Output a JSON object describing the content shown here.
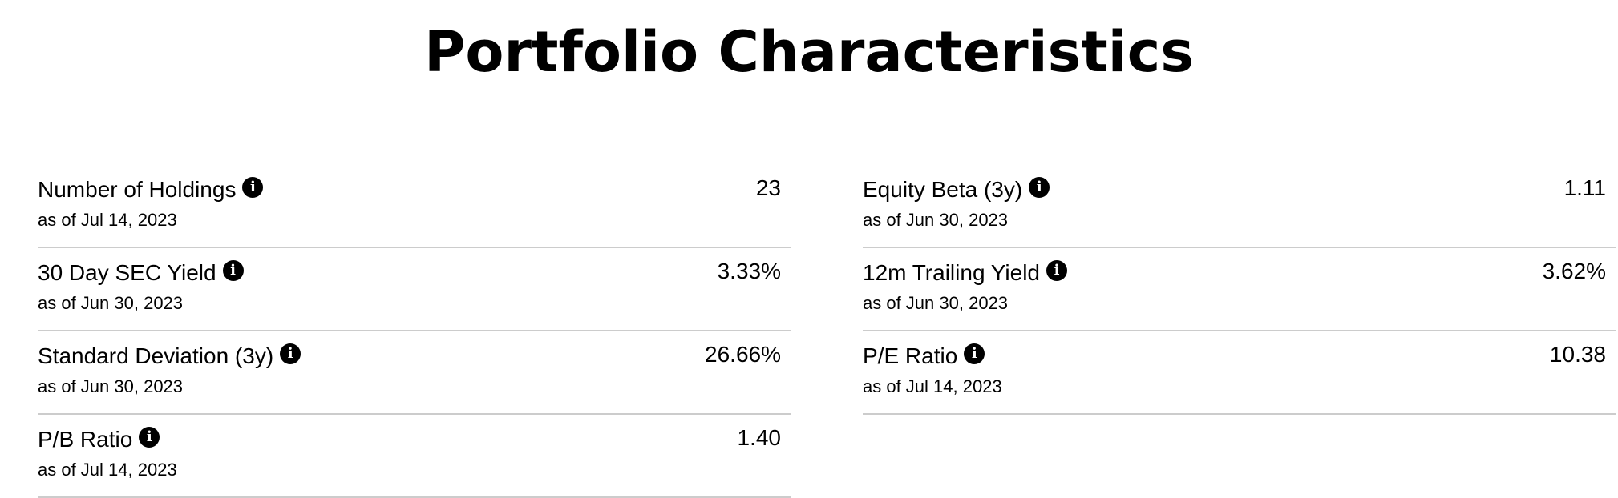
{
  "page": {
    "title": "Portfolio Characteristics"
  },
  "info_icon_glyph": "i",
  "left_column": [
    {
      "label": "Number of Holdings",
      "as_of": "as of Jul 14, 2023",
      "value": "23"
    },
    {
      "label": "30 Day SEC Yield",
      "as_of": "as of Jun 30, 2023",
      "value": "3.33%"
    },
    {
      "label": "Standard Deviation (3y)",
      "as_of": "as of Jun 30, 2023",
      "value": "26.66%"
    },
    {
      "label": "P/B Ratio",
      "as_of": "as of Jul 14, 2023",
      "value": "1.40"
    }
  ],
  "right_column": [
    {
      "label": "Equity Beta (3y)",
      "as_of": "as of Jun 30, 2023",
      "value": "1.11"
    },
    {
      "label": "12m Trailing Yield",
      "as_of": "as of Jun 30, 2023",
      "value": "3.62%"
    },
    {
      "label": "P/E Ratio",
      "as_of": "as of Jul 14, 2023",
      "value": "10.38"
    }
  ],
  "colors": {
    "text": "#000000",
    "divider": "#cccccc",
    "background": "#ffffff"
  },
  "icons": {
    "info": "info-icon"
  }
}
